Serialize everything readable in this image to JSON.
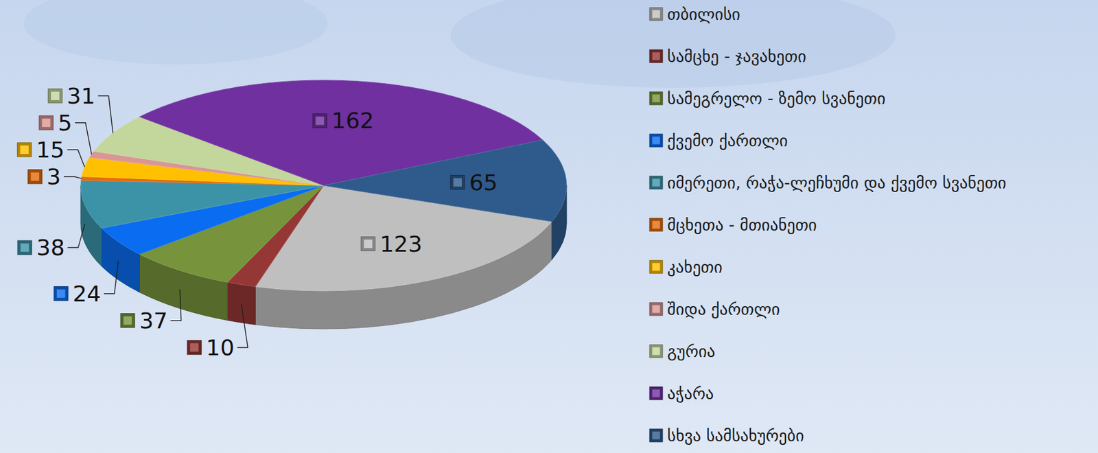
{
  "chart_data": {
    "type": "pie",
    "categories": [
      "თბილისი",
      "სამცხე - ჯავახეთი",
      "სამეგრელო - ზემო სვანეთი",
      "ქვემო ქართლი",
      "იმერეთი, რაჭა-ლეჩხუმი და ქვემო სვანეთი",
      "მცხეთა - მთიანეთი",
      "კახეთი",
      "შიდა ქართლი",
      "გურია",
      "აჭარა",
      "სხვა სამსახურები"
    ],
    "values": [
      123,
      10,
      37,
      24,
      38,
      3,
      15,
      5,
      31,
      162,
      65
    ],
    "colors": [
      "#bfbfbf",
      "#953735",
      "#77933c",
      "#0a6cf0",
      "#3c93a8",
      "#e46c0a",
      "#ffc000",
      "#d99694",
      "#c3d69b",
      "#7030a0",
      "#2e5a8c"
    ],
    "data_labels": true,
    "legend": "right"
  }
}
